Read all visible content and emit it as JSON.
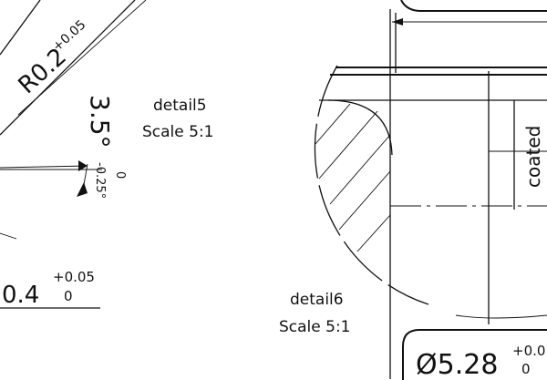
{
  "detail5": {
    "name": "detail5",
    "scale": "Scale 5:1",
    "radius_main": "R0.2",
    "radius_tol": "+0.05",
    "angle_main": "3.5°",
    "angle_tol_upper": "0",
    "angle_tol_lower": "-0.25°",
    "dim_main": "0.4",
    "dim_tol_upper": "+0.05",
    "dim_tol_lower": "0"
  },
  "detail6": {
    "name": "detail6",
    "scale": "Scale 5:1",
    "coated_label": "coated",
    "diameter_main": "Ø5.28",
    "diameter_tol_upper": "+0.0",
    "diameter_tol_lower": "0"
  }
}
